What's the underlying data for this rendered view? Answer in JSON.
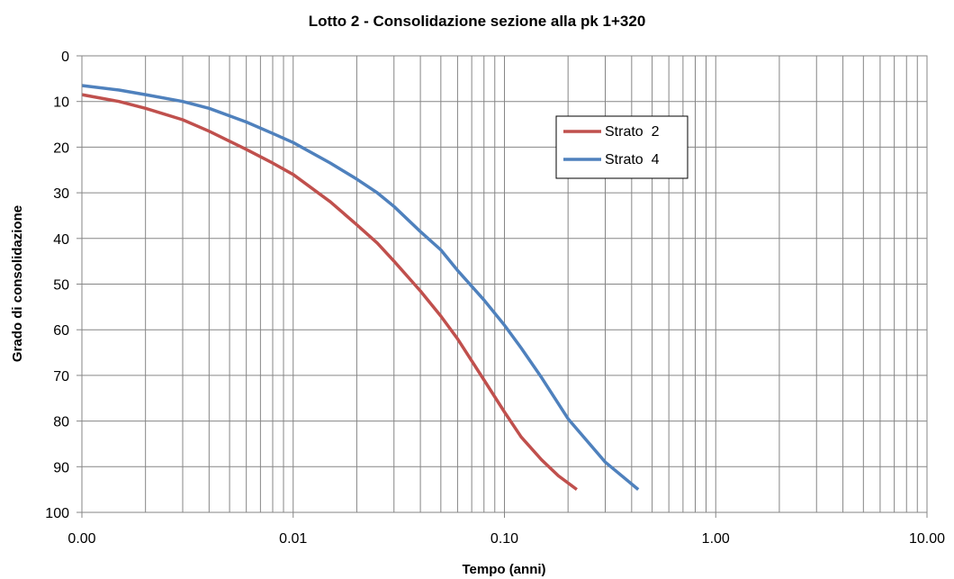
{
  "chart_data": {
    "type": "line",
    "title": "Lotto 2 - Consolidazione sezione alla pk 1+320",
    "xlabel": "Tempo (anni)",
    "ylabel": "Grado di consolidazione",
    "x_scale": "log",
    "x_ticks": [
      0.001,
      0.01,
      0.1,
      1,
      10
    ],
    "x_tick_labels": [
      "0.00",
      "0.01",
      "0.10",
      "1.00",
      "10.00"
    ],
    "xlim": [
      0.001,
      10
    ],
    "y_ticks": [
      0,
      10,
      20,
      30,
      40,
      50,
      60,
      70,
      80,
      90,
      100
    ],
    "y_tick_labels": [
      "0",
      "10",
      "20",
      "30",
      "40",
      "50",
      "60",
      "70",
      "80",
      "90",
      "100"
    ],
    "ylim": [
      0,
      100
    ],
    "y_reversed": true,
    "grid": true,
    "legend_position": "top-center-right",
    "series": [
      {
        "name": "Strato  2",
        "color": "#c0504d",
        "x": [
          0.001,
          0.0015,
          0.002,
          0.003,
          0.004,
          0.006,
          0.008,
          0.01,
          0.015,
          0.02,
          0.025,
          0.03,
          0.04,
          0.05,
          0.06,
          0.08,
          0.1,
          0.12,
          0.15,
          0.18,
          0.22
        ],
        "y": [
          8.5,
          10,
          11.5,
          14,
          16.5,
          20.5,
          23.5,
          26,
          32,
          37,
          41,
          45,
          51.5,
          57,
          62,
          71,
          78,
          83.5,
          88.5,
          92,
          95
        ]
      },
      {
        "name": "Strato  4",
        "color": "#4f81bd",
        "x": [
          0.001,
          0.0015,
          0.002,
          0.003,
          0.004,
          0.006,
          0.008,
          0.01,
          0.015,
          0.02,
          0.025,
          0.03,
          0.04,
          0.05,
          0.06,
          0.08,
          0.1,
          0.12,
          0.15,
          0.2,
          0.3,
          0.43
        ],
        "y": [
          6.5,
          7.5,
          8.5,
          10,
          11.5,
          14.5,
          17,
          19,
          23.5,
          27,
          30,
          33,
          38.5,
          42.5,
          47,
          53.5,
          59,
          64,
          70.5,
          79.5,
          89,
          95
        ]
      }
    ]
  }
}
